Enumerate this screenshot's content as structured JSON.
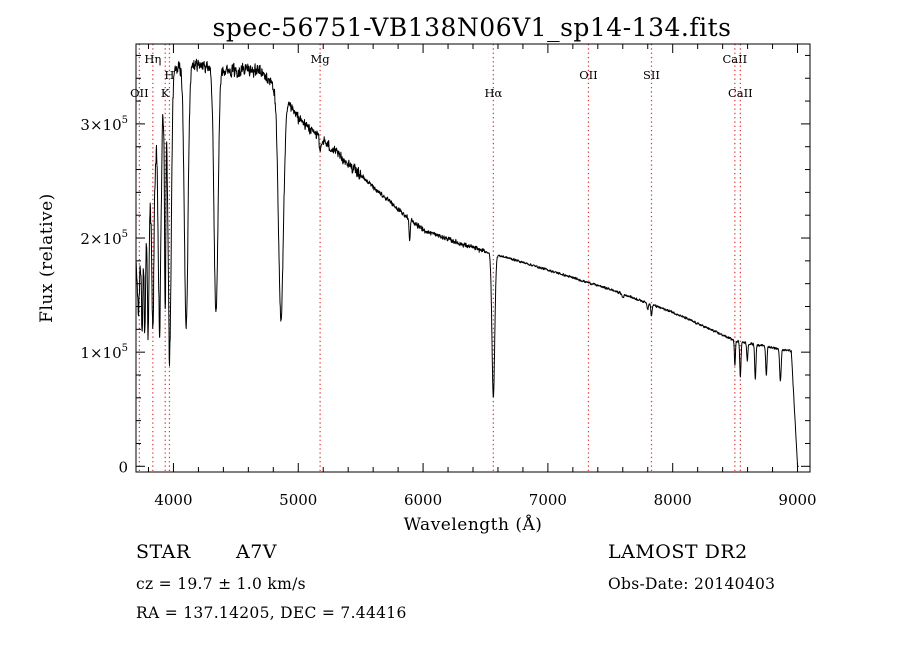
{
  "chart_data": {
    "type": "line",
    "title": "spec-56751-VB138N06V1_sp14-134.fits",
    "xlabel": "Wavelength (Å)",
    "ylabel": "Flux (relative)",
    "xlim": [
      3700,
      9100
    ],
    "ylim": [
      -5000,
      370000
    ],
    "x_ticks": [
      4000,
      5000,
      6000,
      7000,
      8000,
      9000
    ],
    "x_tick_labels": [
      "4000",
      "5000",
      "6000",
      "7000",
      "8000",
      "9000"
    ],
    "y_ticks": [
      0,
      100000,
      200000,
      300000
    ],
    "y_tick_labels": [
      {
        "mantissa": "0",
        "exp": ""
      },
      {
        "mantissa": "1×10",
        "exp": "5"
      },
      {
        "mantissa": "2×10",
        "exp": "5"
      },
      {
        "mantissa": "3×10",
        "exp": "5"
      }
    ],
    "grid": false,
    "line_color": "#000000",
    "marker_color": "#dd3333",
    "lines": [
      {
        "name": "OII",
        "label": "OII",
        "wavelength": 3727,
        "label_row": "low"
      },
      {
        "name": "H-eta",
        "label": "Hη",
        "wavelength": 3835,
        "label_row": "top"
      },
      {
        "name": "K",
        "label": "K",
        "wavelength": 3934,
        "label_row": "low"
      },
      {
        "name": "H",
        "label": "H",
        "wavelength": 3968,
        "label_row": "mid"
      },
      {
        "name": "Mg",
        "label": "Mg",
        "wavelength": 5175,
        "label_row": "top"
      },
      {
        "name": "H-alpha",
        "label": "Hα",
        "wavelength": 6563,
        "label_row": "low"
      },
      {
        "name": "OII-7325",
        "label": "OII",
        "wavelength": 7325,
        "label_row": "mid"
      },
      {
        "name": "SII",
        "label": "SII",
        "wavelength": 7830,
        "label_row": "mid"
      },
      {
        "name": "CaII-8498",
        "label": "CaII",
        "wavelength": 8498,
        "label_row": "top"
      },
      {
        "name": "CaII-8542",
        "label": "CaII",
        "wavelength": 8542,
        "label_row": "low"
      }
    ],
    "spectrum": {
      "name": "flux",
      "continuum": [
        [
          3700,
          175000
        ],
        [
          3800,
          230000
        ],
        [
          3900,
          300000
        ],
        [
          4000,
          345000
        ],
        [
          4100,
          355000
        ],
        [
          4200,
          352000
        ],
        [
          4300,
          350000
        ],
        [
          4400,
          348000
        ],
        [
          4500,
          347000
        ],
        [
          4600,
          348000
        ],
        [
          4700,
          345000
        ],
        [
          4800,
          335000
        ],
        [
          5000,
          305000
        ],
        [
          5200,
          285000
        ],
        [
          5500,
          255000
        ],
        [
          5800,
          225000
        ],
        [
          6000,
          207000
        ],
        [
          6300,
          195000
        ],
        [
          6560,
          186000
        ],
        [
          6700,
          182000
        ],
        [
          7000,
          172000
        ],
        [
          7500,
          155000
        ],
        [
          8000,
          135000
        ],
        [
          8400,
          115000
        ],
        [
          8500,
          110000
        ],
        [
          8700,
          106000
        ],
        [
          8950,
          101000
        ],
        [
          9000,
          0
        ]
      ],
      "features": [
        {
          "center": 3720,
          "width": 8,
          "depth": 50000
        },
        {
          "center": 3750,
          "width": 6,
          "depth": 90000
        },
        {
          "center": 3771,
          "width": 6,
          "depth": 95000
        },
        {
          "center": 3798,
          "width": 7,
          "depth": 110000
        },
        {
          "center": 3835,
          "width": 8,
          "depth": 140000
        },
        {
          "center": 3889,
          "width": 10,
          "depth": 175000
        },
        {
          "center": 3934,
          "width": 5,
          "depth": 180000
        },
        {
          "center": 3970,
          "width": 12,
          "depth": 240000
        },
        {
          "center": 4102,
          "width": 15,
          "depth": 230000
        },
        {
          "center": 4341,
          "width": 16,
          "depth": 215000
        },
        {
          "center": 4861,
          "width": 20,
          "depth": 195000
        },
        {
          "center": 5175,
          "width": 6,
          "depth": 12000
        },
        {
          "center": 5893,
          "width": 5,
          "depth": 17000
        },
        {
          "center": 6563,
          "width": 11,
          "depth": 125000
        },
        {
          "center": 7600,
          "width": 7,
          "depth": 3000
        },
        {
          "center": 7800,
          "width": 5,
          "depth": 5000
        },
        {
          "center": 7830,
          "width": 5,
          "depth": 10000
        },
        {
          "center": 8498,
          "width": 4,
          "depth": 22000
        },
        {
          "center": 8542,
          "width": 5,
          "depth": 30000
        },
        {
          "center": 8598,
          "width": 5,
          "depth": 15000
        },
        {
          "center": 8662,
          "width": 5,
          "depth": 30000
        },
        {
          "center": 8750,
          "width": 5,
          "depth": 25000
        },
        {
          "center": 8863,
          "width": 6,
          "depth": 28000
        }
      ],
      "noise_regions": [
        {
          "from": 3700,
          "to": 4000,
          "amplitude": 30000
        },
        {
          "from": 4000,
          "to": 4900,
          "amplitude": 14000
        },
        {
          "from": 4900,
          "to": 5500,
          "amplitude": 11000
        },
        {
          "from": 5500,
          "to": 6500,
          "amplitude": 5000
        },
        {
          "from": 6500,
          "to": 9000,
          "amplitude": 2500
        }
      ]
    }
  },
  "info": {
    "object_type": "STAR",
    "subclass": "A7V",
    "survey": "LAMOST DR2",
    "cz": "cz = 19.7 ± 1.0 km/s",
    "obs_date": "Obs-Date: 20140403",
    "coords": "RA = 137.14205, DEC =   7.44416"
  }
}
